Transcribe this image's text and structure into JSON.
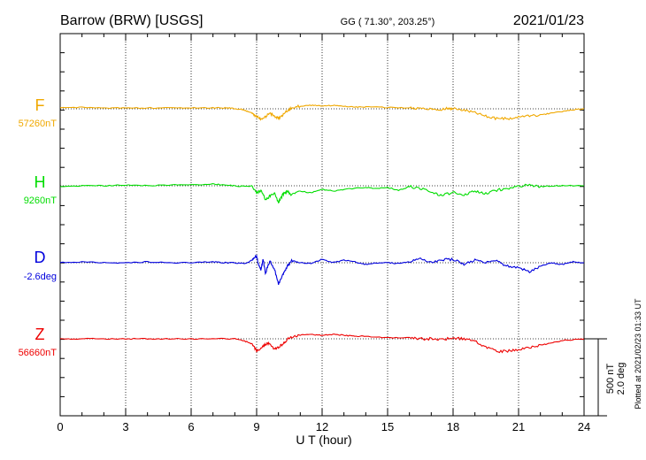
{
  "header": {
    "station": "Barrow (BRW)  [USGS]",
    "coords": "GG ( 71.30°, 203.25°)",
    "date": "2021/01/23"
  },
  "colors": {
    "F": "#f0a800",
    "H": "#00dd00",
    "D": "#0000dd",
    "Z": "#ee0000"
  },
  "chart_data": {
    "type": "line",
    "xlabel": "U T (hour)",
    "xlim": [
      0,
      24
    ],
    "xticks": [
      0,
      3,
      6,
      9,
      12,
      15,
      18,
      21,
      24
    ],
    "grid": true,
    "scale_bar": {
      "line1": "500 nT",
      "line2": "2.0 deg"
    },
    "plotted_note": "Plotted at 2021/02/23 01:33 UT",
    "series": [
      {
        "name": "F",
        "baseline_label": "57260nT",
        "color": "#f0a800",
        "points": [
          [
            0,
            -1
          ],
          [
            1,
            -1.5
          ],
          [
            2,
            -1
          ],
          [
            3,
            -1
          ],
          [
            4,
            -1
          ],
          [
            5,
            -1
          ],
          [
            6,
            -1
          ],
          [
            7,
            -1
          ],
          [
            7.5,
            -1.2
          ],
          [
            7.9,
            -0.5
          ],
          [
            8.3,
            0.5
          ],
          [
            8.6,
            3
          ],
          [
            8.8,
            5
          ],
          [
            9.0,
            9
          ],
          [
            9.2,
            12
          ],
          [
            9.4,
            9
          ],
          [
            9.6,
            5
          ],
          [
            9.8,
            8
          ],
          [
            10.0,
            11
          ],
          [
            10.2,
            7
          ],
          [
            10.4,
            2
          ],
          [
            10.6,
            -1
          ],
          [
            11,
            -3
          ],
          [
            11.5,
            -4
          ],
          [
            12,
            -3
          ],
          [
            12.5,
            -4
          ],
          [
            13,
            -3
          ],
          [
            13.5,
            -2
          ],
          [
            14,
            -2
          ],
          [
            15,
            -1.5
          ],
          [
            16,
            -1
          ],
          [
            16.5,
            -0.5
          ],
          [
            17,
            0.5
          ],
          [
            17.4,
            2
          ],
          [
            17.8,
            -1
          ],
          [
            18,
            0
          ],
          [
            18.5,
            1
          ],
          [
            19,
            4
          ],
          [
            19.5,
            8
          ],
          [
            20,
            11
          ],
          [
            20.5,
            11
          ],
          [
            21,
            9
          ],
          [
            21.5,
            8
          ],
          [
            22,
            7
          ],
          [
            22.5,
            5
          ],
          [
            23,
            3
          ],
          [
            23.5,
            1
          ],
          [
            24,
            0
          ]
        ]
      },
      {
        "name": "H",
        "baseline_label": "9260nT",
        "color": "#00dd00",
        "points": [
          [
            0,
            1
          ],
          [
            1,
            0
          ],
          [
            2,
            0
          ],
          [
            3,
            -1
          ],
          [
            4,
            0
          ],
          [
            5,
            -1
          ],
          [
            6,
            -1
          ],
          [
            7,
            -2
          ],
          [
            7.5,
            -1
          ],
          [
            8,
            0
          ],
          [
            8.5,
            1
          ],
          [
            8.8,
            0
          ],
          [
            9.0,
            8
          ],
          [
            9.2,
            5
          ],
          [
            9.4,
            16
          ],
          [
            9.6,
            12
          ],
          [
            9.8,
            8
          ],
          [
            10.0,
            19
          ],
          [
            10.2,
            10
          ],
          [
            10.4,
            6
          ],
          [
            10.6,
            10
          ],
          [
            11,
            6
          ],
          [
            11.5,
            8
          ],
          [
            12,
            4
          ],
          [
            12.5,
            6
          ],
          [
            13,
            4
          ],
          [
            14,
            2
          ],
          [
            14.5,
            3
          ],
          [
            15,
            2
          ],
          [
            15.5,
            5
          ],
          [
            16,
            1
          ],
          [
            16.5,
            3
          ],
          [
            17,
            7
          ],
          [
            17.5,
            11
          ],
          [
            18,
            7
          ],
          [
            18.5,
            10
          ],
          [
            19,
            6
          ],
          [
            19.5,
            9
          ],
          [
            20,
            5
          ],
          [
            20.5,
            3
          ],
          [
            21,
            1
          ],
          [
            21.5,
            -1
          ],
          [
            22,
            1
          ],
          [
            22.5,
            0
          ],
          [
            23,
            0
          ],
          [
            24,
            0
          ]
        ]
      },
      {
        "name": "D",
        "baseline_label": "-2.6deg",
        "color": "#0000dd",
        "points": [
          [
            0,
            0
          ],
          [
            1,
            -1
          ],
          [
            2,
            0
          ],
          [
            3,
            0
          ],
          [
            4,
            -1
          ],
          [
            5,
            0
          ],
          [
            6,
            0
          ],
          [
            7,
            -1
          ],
          [
            7.5,
            0
          ],
          [
            8,
            0
          ],
          [
            8.5,
            1
          ],
          [
            8.8,
            -3
          ],
          [
            9.0,
            -8
          ],
          [
            9.1,
            4
          ],
          [
            9.2,
            8
          ],
          [
            9.3,
            -4
          ],
          [
            9.4,
            12
          ],
          [
            9.6,
            -2
          ],
          [
            9.8,
            6
          ],
          [
            10.0,
            24
          ],
          [
            10.2,
            14
          ],
          [
            10.4,
            4
          ],
          [
            10.6,
            -2
          ],
          [
            11,
            0
          ],
          [
            11.5,
            1
          ],
          [
            12,
            -4
          ],
          [
            12.5,
            0
          ],
          [
            13,
            -3
          ],
          [
            13.5,
            -1
          ],
          [
            14,
            2
          ],
          [
            14.5,
            0
          ],
          [
            15,
            0
          ],
          [
            15.5,
            1
          ],
          [
            16,
            -1
          ],
          [
            16.5,
            -5
          ],
          [
            17,
            0
          ],
          [
            17.5,
            -3
          ],
          [
            18,
            -4
          ],
          [
            18.5,
            2
          ],
          [
            19,
            -3
          ],
          [
            19.5,
            0
          ],
          [
            20,
            -2
          ],
          [
            20.5,
            4
          ],
          [
            21,
            5
          ],
          [
            21.5,
            10
          ],
          [
            22,
            4
          ],
          [
            22.5,
            0
          ],
          [
            23,
            2
          ],
          [
            23.5,
            -1
          ],
          [
            24,
            0
          ]
        ]
      },
      {
        "name": "Z",
        "baseline_label": "56660nT",
        "color": "#ee0000",
        "points": [
          [
            0,
            0
          ],
          [
            1,
            0
          ],
          [
            2,
            0
          ],
          [
            3,
            0
          ],
          [
            4,
            0
          ],
          [
            5,
            0
          ],
          [
            6,
            0
          ],
          [
            7,
            0
          ],
          [
            8,
            0
          ],
          [
            8.5,
            3
          ],
          [
            8.8,
            6
          ],
          [
            9.0,
            14
          ],
          [
            9.2,
            11
          ],
          [
            9.4,
            6
          ],
          [
            9.6,
            5
          ],
          [
            9.8,
            11
          ],
          [
            10.0,
            10
          ],
          [
            10.2,
            6
          ],
          [
            10.4,
            1
          ],
          [
            10.6,
            -2
          ],
          [
            11,
            -4
          ],
          [
            11.5,
            -5
          ],
          [
            12,
            -4
          ],
          [
            12.5,
            -5
          ],
          [
            13,
            -4
          ],
          [
            13.5,
            -3
          ],
          [
            14,
            -3
          ],
          [
            15,
            -1
          ],
          [
            16,
            -1
          ],
          [
            16.5,
            0
          ],
          [
            17,
            0
          ],
          [
            17.5,
            1
          ],
          [
            18,
            -1
          ],
          [
            18.5,
            0
          ],
          [
            19,
            3
          ],
          [
            19.5,
            9
          ],
          [
            20,
            14
          ],
          [
            20.5,
            14
          ],
          [
            21,
            12
          ],
          [
            21.5,
            10
          ],
          [
            22,
            7
          ],
          [
            22.5,
            5
          ],
          [
            23,
            2
          ],
          [
            23.5,
            1
          ],
          [
            24,
            0
          ]
        ]
      }
    ]
  }
}
